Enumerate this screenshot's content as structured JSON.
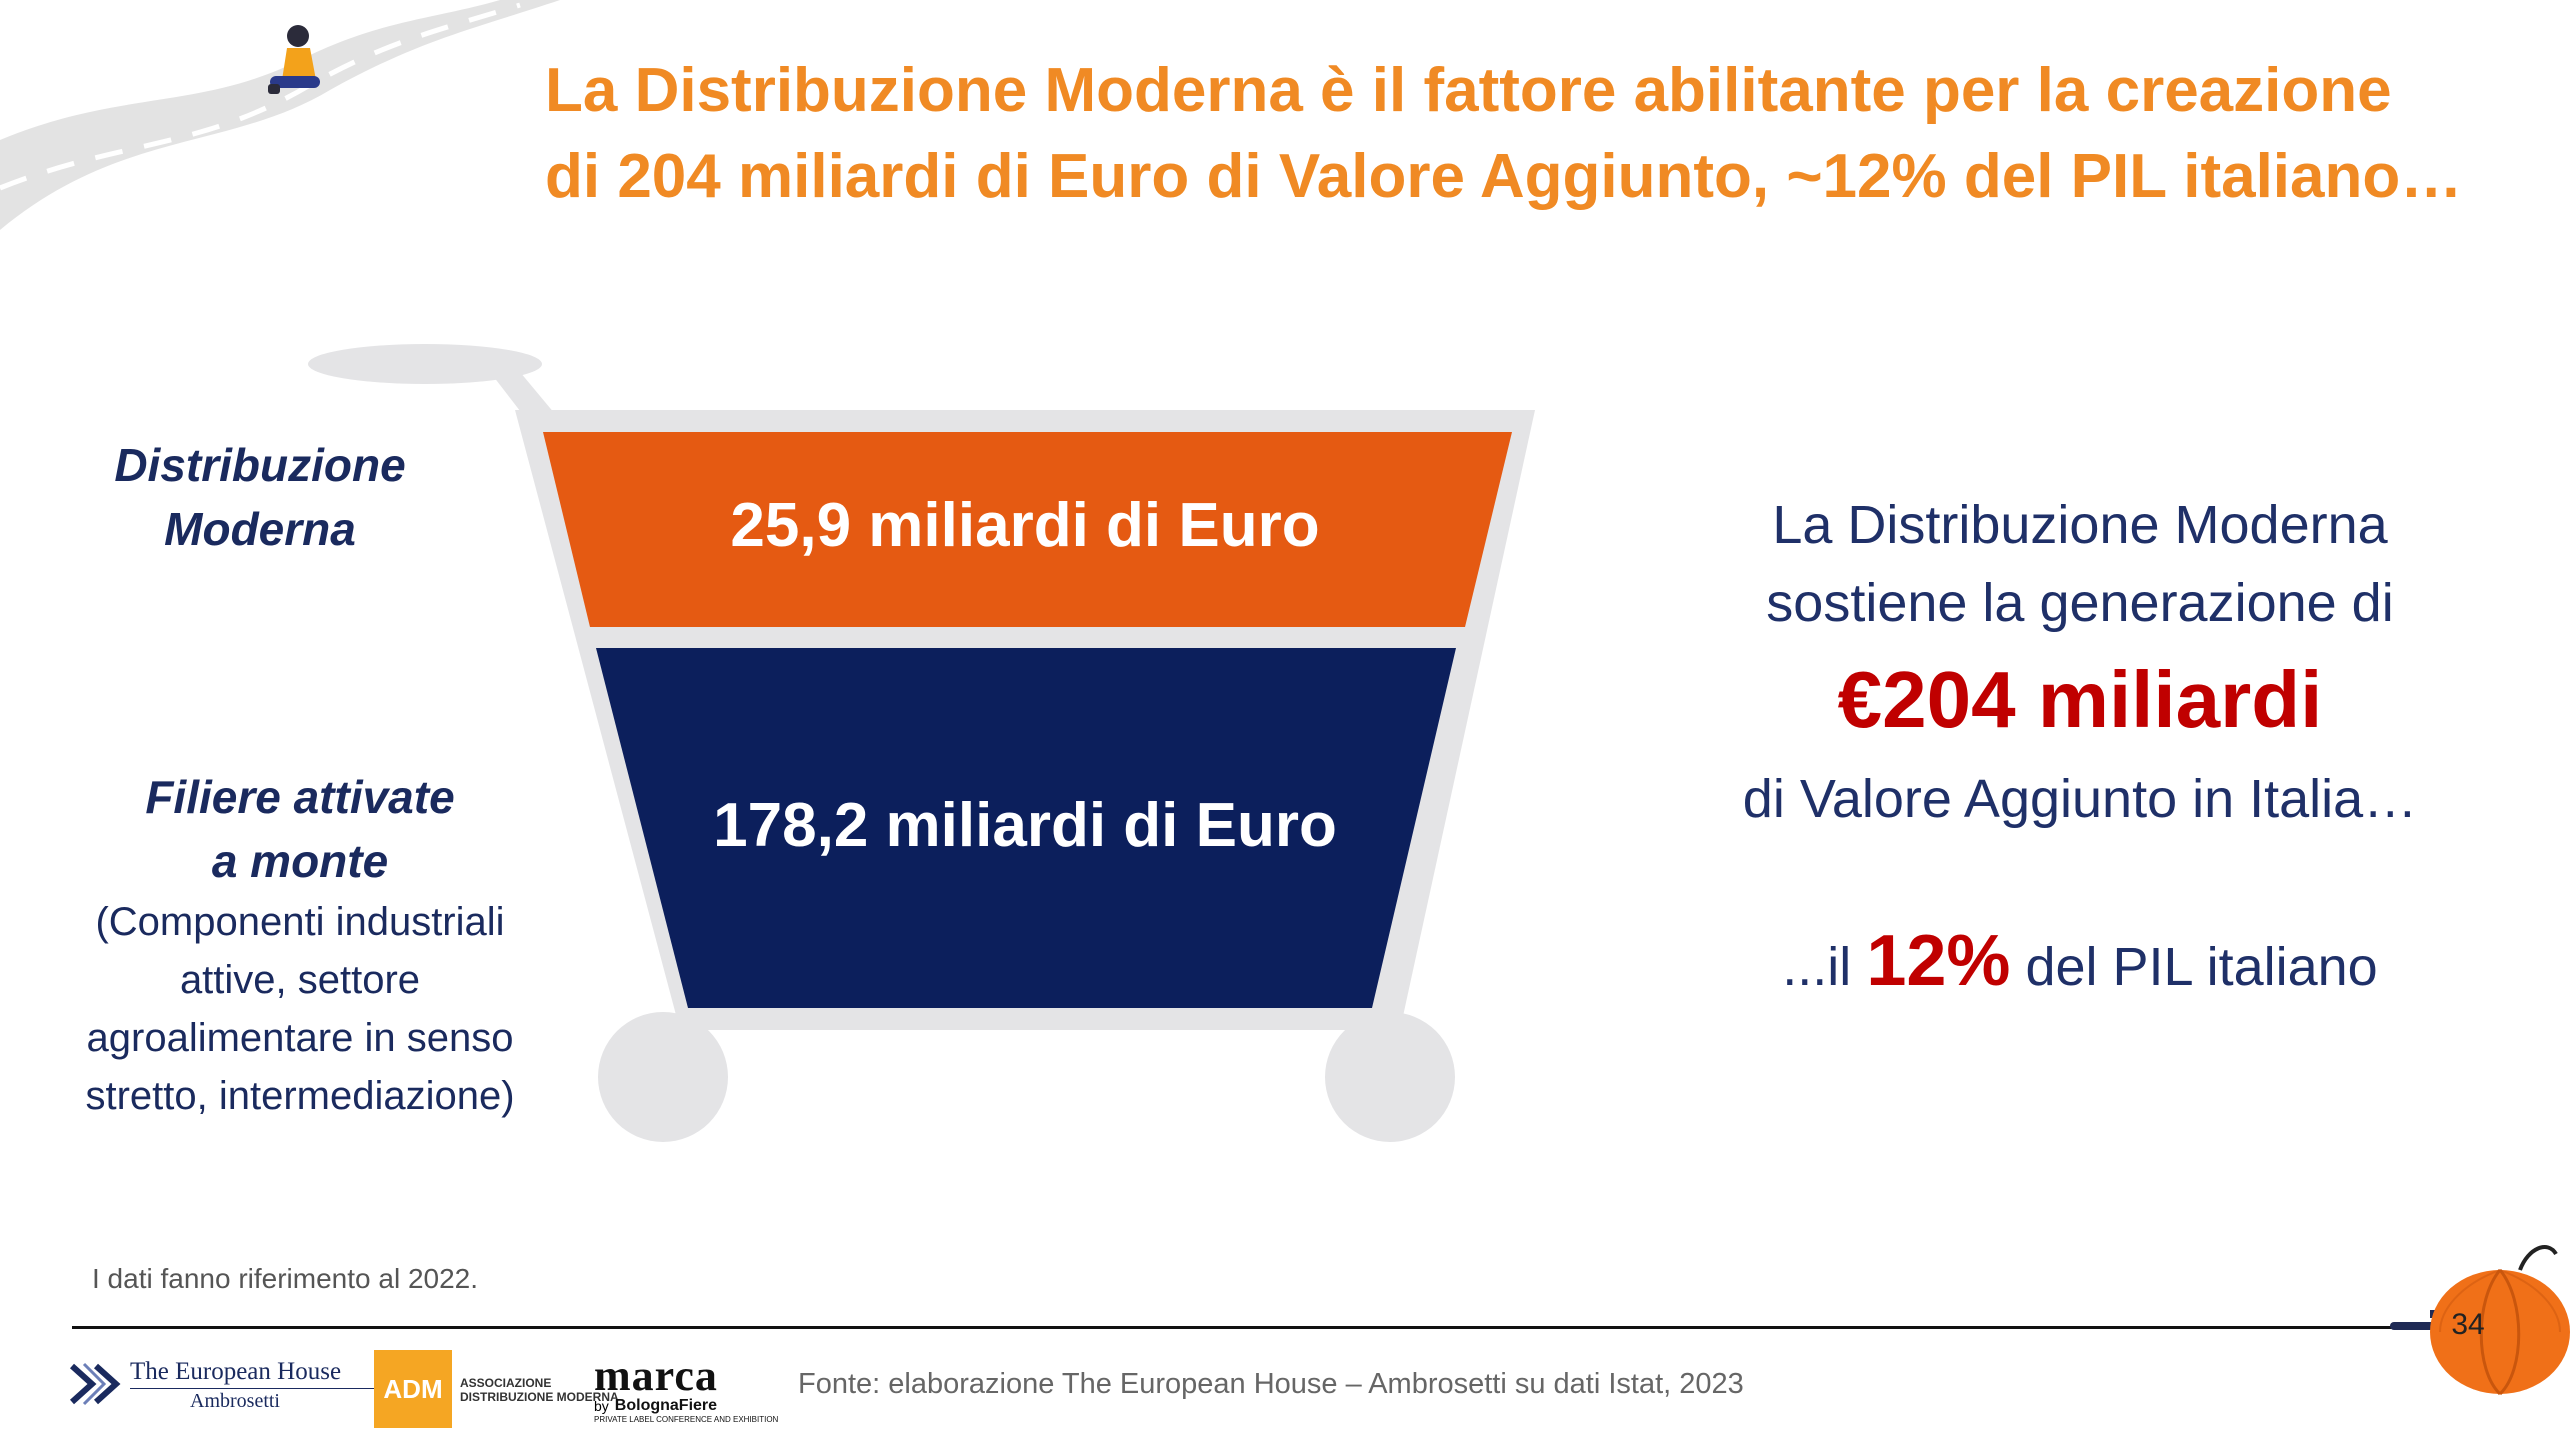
{
  "title": {
    "line1": "La Distribuzione Moderna è il fattore abilitante per la creazione",
    "line2": "di 204 miliardi di Euro di Valore Aggiunto, ~12% del PIL italiano…"
  },
  "left_labels": {
    "dm_line1": "Distribuzione",
    "dm_line2": "Moderna",
    "filiere_line1": "Filiere attivate",
    "filiere_line2": "a monte",
    "filiere_sub": [
      "(Componenti industriali",
      "attive, settore",
      "agroalimentare in senso",
      "stretto, intermediazione)"
    ]
  },
  "cart": {
    "top_value": "25,9 miliardi di Euro",
    "bottom_value": "178,2 miliardi di Euro",
    "top_color": "#e55a12",
    "bottom_color": "#0c1f5c",
    "frame_color": "#e4e4e6"
  },
  "right_panel": {
    "line1": "La Distribuzione Moderna",
    "line2": "sostiene la generazione di",
    "big_value": "€204 miliardi",
    "line4": "di Valore Aggiunto in Italia…",
    "pil_prefix": "...il",
    "pil_value": "12%",
    "pil_suffix": "del PIL italiano"
  },
  "footer": {
    "note": "I dati fanno riferimento al 2022.",
    "source": "Fonte: elaborazione The European House – Ambrosetti su dati Istat, 2023",
    "page_number": "34"
  },
  "logos": {
    "teh_line1": "The European House",
    "teh_line2": "Ambrosetti",
    "adm": "ADM",
    "adm_line1": "ASSOCIAZIONE",
    "adm_line2": "DISTRIBUZIONE MODERNA",
    "marca": "marca",
    "marca_by": "by",
    "marca_org": "BolognaFiere",
    "marca_tag": "PRIVATE LABEL CONFERENCE AND EXHIBITION"
  },
  "colors": {
    "title": "#f08a24",
    "navy": "#1f3068",
    "accent_red": "#c00000"
  }
}
